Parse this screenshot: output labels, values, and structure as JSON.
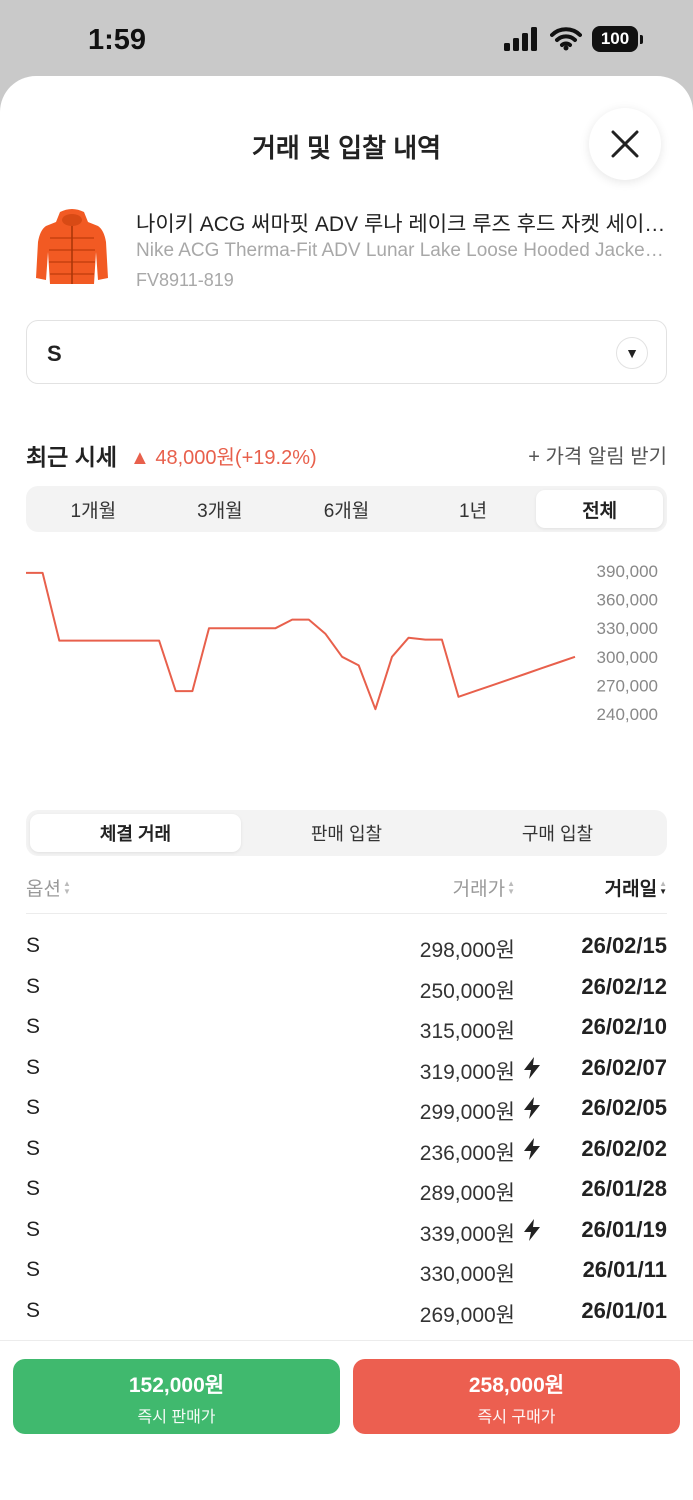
{
  "status": {
    "time": "1:59",
    "battery": "100"
  },
  "header": {
    "title": "거래 및 입찰 내역"
  },
  "product": {
    "name_ko": "나이키 ACG 써마핏 ADV 루나 레이크 루즈 후드 자켓 세이프티 오렌지",
    "name_en": "Nike ACG Therma-Fit ADV Lunar Lake Loose Hooded Jacket Safety Orange",
    "code": "FV8911-819",
    "image_color": "#f25a23"
  },
  "size_select": {
    "value": "S",
    "caret": "▼"
  },
  "price_summary": {
    "title": "최근 시세",
    "change": "▲ 48,000원(+19.2%)",
    "alert_label": "+ 가격 알림 받기",
    "change_color": "#e8604c"
  },
  "period_tabs": [
    {
      "label": "1개월",
      "active": false
    },
    {
      "label": "3개월",
      "active": false
    },
    {
      "label": "6개월",
      "active": false
    },
    {
      "label": "1년",
      "active": false
    },
    {
      "label": "전체",
      "active": true
    }
  ],
  "chart_data": {
    "type": "line",
    "line_color": "#e8604c",
    "y_ticks": [
      "390,000",
      "360,000",
      "330,000",
      "300,000",
      "270,000",
      "240,000"
    ],
    "ylim": [
      240000,
      390000
    ],
    "series": [
      {
        "values": [
          388000,
          388000,
          317000,
          317000,
          317000,
          317000,
          317000,
          317000,
          317000,
          264000,
          264000,
          330000,
          330000,
          330000,
          330000,
          330000,
          339000,
          339000,
          324000,
          300000,
          291000,
          245000,
          300000,
          320000,
          318000,
          318000,
          258000,
          264000,
          270000,
          276000,
          282000,
          288000,
          294000,
          300000
        ]
      }
    ]
  },
  "list_tabs": [
    {
      "label": "체결 거래",
      "active": true
    },
    {
      "label": "판매 입찰",
      "active": false
    },
    {
      "label": "구매 입찰",
      "active": false
    }
  ],
  "table": {
    "headers": {
      "option": "옵션",
      "price": "거래가",
      "date": "거래일"
    },
    "rows": [
      {
        "option": "S",
        "price": "298,000원",
        "flash": false,
        "date": "26/02/15"
      },
      {
        "option": "S",
        "price": "250,000원",
        "flash": false,
        "date": "26/02/12"
      },
      {
        "option": "S",
        "price": "315,000원",
        "flash": false,
        "date": "26/02/10"
      },
      {
        "option": "S",
        "price": "319,000원",
        "flash": true,
        "date": "26/02/07"
      },
      {
        "option": "S",
        "price": "299,000원",
        "flash": true,
        "date": "26/02/05"
      },
      {
        "option": "S",
        "price": "236,000원",
        "flash": true,
        "date": "26/02/02"
      },
      {
        "option": "S",
        "price": "289,000원",
        "flash": false,
        "date": "26/01/28"
      },
      {
        "option": "S",
        "price": "339,000원",
        "flash": true,
        "date": "26/01/19"
      },
      {
        "option": "S",
        "price": "330,000원",
        "flash": false,
        "date": "26/01/11"
      },
      {
        "option": "S",
        "price": "269,000원",
        "flash": false,
        "date": "26/01/01"
      }
    ]
  },
  "bottom": {
    "sell": {
      "price": "152,000원",
      "label": "즉시 판매가",
      "color": "#40b96e"
    },
    "buy": {
      "price": "258,000원",
      "label": "즉시 구매가",
      "color": "#ec5f50"
    }
  }
}
